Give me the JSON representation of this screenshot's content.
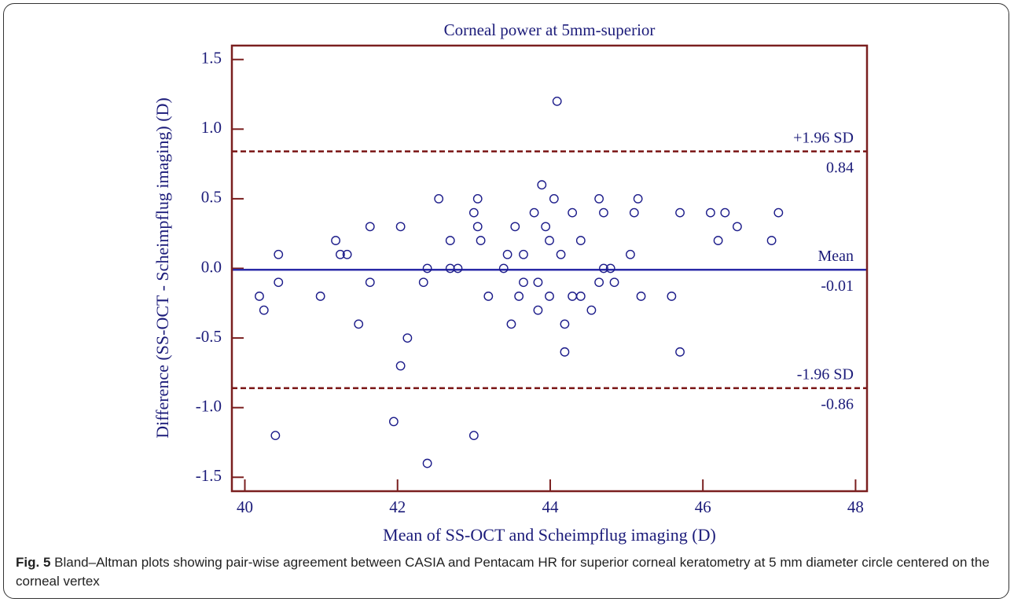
{
  "chart_data": {
    "type": "scatter",
    "title": "Corneal power at 5mm-superior",
    "x_label": "Mean of SS-OCT and Scheimpflug imaging (D)",
    "y_label": "Difference (SS-OCT - Scheimpflug imaging) (D)",
    "xlim": [
      39.83,
      48.15
    ],
    "ylim": [
      -1.6,
      1.6
    ],
    "xticks": [
      40,
      42,
      44,
      46,
      48
    ],
    "yticks": [
      1.5,
      {
        "value": 1.0,
        "label": "1.0"
      },
      0.5,
      {
        "value": 0.0,
        "label": "0.0"
      },
      -0.5,
      {
        "value": -1.0,
        "label": "-1.0"
      },
      -1.5
    ],
    "series": [
      {
        "color": "#1c1c8a",
        "x": [
          40.19,
          40.25,
          40.44,
          40.44,
          40.4,
          40.99,
          41.19,
          41.25,
          41.34,
          41.49,
          41.64,
          41.64,
          41.95,
          42.04,
          42.04,
          42.13,
          42.34,
          42.39,
          42.39,
          42.54,
          42.69,
          42.69,
          42.79,
          43.0,
          43.0,
          43.05,
          43.05,
          43.09,
          43.19,
          43.39,
          43.44,
          43.49,
          43.54,
          43.59,
          43.65,
          43.65,
          43.79,
          43.84,
          43.84,
          43.89,
          43.94,
          43.99,
          43.99,
          44.05,
          44.09,
          44.14,
          44.19,
          44.19,
          44.29,
          44.29,
          44.4,
          44.4,
          44.54,
          44.64,
          44.64,
          44.7,
          44.7,
          44.79,
          44.84,
          45.05,
          45.1,
          45.15,
          45.19,
          45.59,
          45.7,
          45.7,
          46.1,
          46.2,
          46.29,
          46.45,
          46.9,
          46.99
        ],
        "values": [
          -0.2,
          -0.3,
          0.1,
          -0.1,
          -1.2,
          -0.2,
          0.2,
          0.1,
          0.1,
          -0.4,
          0.3,
          -0.1,
          -1.1,
          0.3,
          -0.7,
          -0.5,
          -0.1,
          0.0,
          -1.4,
          0.5,
          0.2,
          0.0,
          0.0,
          0.4,
          -1.2,
          0.5,
          0.3,
          0.2,
          -0.2,
          0.0,
          0.1,
          -0.4,
          0.3,
          -0.2,
          0.1,
          -0.1,
          0.4,
          -0.1,
          -0.3,
          0.6,
          0.3,
          0.2,
          -0.2,
          0.5,
          1.2,
          0.1,
          -0.4,
          -0.6,
          0.4,
          -0.2,
          0.2,
          -0.2,
          -0.3,
          0.5,
          -0.1,
          0.4,
          0.0,
          0.0,
          -0.1,
          0.1,
          0.4,
          0.5,
          -0.2,
          -0.2,
          0.4,
          -0.6,
          0.4,
          0.2,
          0.4,
          0.3,
          0.2,
          0.4
        ]
      }
    ],
    "lines": [
      {
        "name": "+1.96 SD",
        "value": 0.84,
        "color": "#7a1414",
        "dashed": true
      },
      {
        "name": "Mean",
        "value": -0.01,
        "color": "#2a2aa8",
        "dashed": false
      },
      {
        "name": "-1.96 SD",
        "value": -0.86,
        "color": "#7a1414",
        "dashed": true
      }
    ],
    "frame_color": "#7a1f1f"
  },
  "caption": {
    "label": "Fig. 5",
    "text": "Bland–Altman plots showing pair-wise agreement between CASIA and Pentacam HR for superior corneal keratometry at 5 mm diameter circle centered on the corneal vertex"
  }
}
